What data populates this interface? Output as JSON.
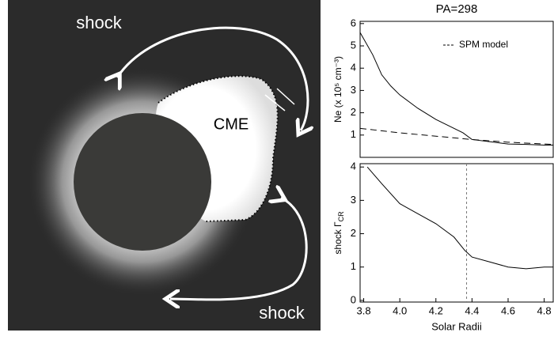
{
  "image": {
    "labels": [
      "shock",
      "CME",
      "shock"
    ]
  },
  "chart_data": [
    {
      "type": "line",
      "title": "PA=298",
      "ylabel": "Ne (x 10⁵ cm⁻³)",
      "xlim": [
        3.78,
        4.85
      ],
      "ylim": [
        0,
        6.1
      ],
      "yticks": [
        1,
        2,
        3,
        4,
        5,
        6
      ],
      "legend": "upper right",
      "series": [
        {
          "name": null,
          "color": "#000000",
          "style": "solid",
          "x": [
            3.78,
            3.85,
            3.9,
            3.95,
            4.0,
            4.05,
            4.1,
            4.2,
            4.3,
            4.35,
            4.4,
            4.5,
            4.6,
            4.7,
            4.8,
            4.85
          ],
          "values": [
            5.6,
            4.6,
            3.7,
            3.2,
            2.8,
            2.5,
            2.2,
            1.7,
            1.3,
            1.1,
            0.8,
            0.7,
            0.6,
            0.58,
            0.55,
            0.55
          ]
        },
        {
          "name": "SPM model",
          "color": "#000000",
          "style": "dashed",
          "x": [
            3.78,
            4.0,
            4.2,
            4.4,
            4.6,
            4.85
          ],
          "values": [
            1.3,
            1.1,
            0.95,
            0.8,
            0.68,
            0.58
          ]
        }
      ]
    },
    {
      "type": "line",
      "ylabel": {
        "text": "shock Γ",
        "sub": "CR"
      },
      "xlabel": "Solar Radii",
      "xlim": [
        3.78,
        4.85
      ],
      "ylim": [
        -0.05,
        4.1
      ],
      "yticks": [
        0,
        1,
        2,
        3,
        4
      ],
      "xticks": [
        3.8,
        {
          "value": 4,
          "label": "4.0"
        },
        4.2,
        4.4,
        4.6,
        4.8
      ],
      "vline": 4.37,
      "series": [
        {
          "name": null,
          "color": "#000000",
          "style": "solid",
          "x": [
            3.82,
            3.9,
            4.0,
            4.1,
            4.2,
            4.3,
            4.36,
            4.4,
            4.5,
            4.6,
            4.7,
            4.8,
            4.85
          ],
          "values": [
            4.0,
            3.5,
            2.9,
            2.6,
            2.3,
            1.9,
            1.5,
            1.3,
            1.15,
            1.0,
            0.95,
            1.0,
            1.0
          ]
        }
      ]
    }
  ]
}
